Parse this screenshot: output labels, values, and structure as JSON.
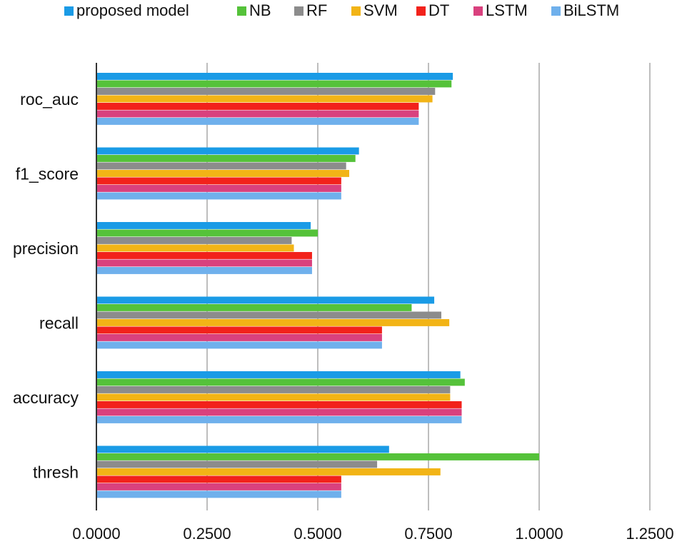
{
  "chart_data": {
    "type": "bar",
    "orientation": "horizontal",
    "title": "",
    "xlabel": "",
    "ylabel": "",
    "xlim": [
      0,
      1.25
    ],
    "xticks": [
      "0.0000",
      "0.2500",
      "0.5000",
      "0.7500",
      "1.0000",
      "1.2500"
    ],
    "xtick_values": [
      0,
      0.25,
      0.5,
      0.75,
      1.0,
      1.25
    ],
    "grid": true,
    "legend_position": "top",
    "categories": [
      "roc_auc",
      "f1_score",
      "precision",
      "recall",
      "accuracy",
      "thresh"
    ],
    "series": [
      {
        "name": "proposed model",
        "color": "#1a9be6",
        "values": [
          0.805,
          0.593,
          0.484,
          0.763,
          0.822,
          0.661
        ]
      },
      {
        "name": "NB",
        "color": "#55c23a",
        "values": [
          0.802,
          0.585,
          0.5,
          0.712,
          0.832,
          1.0
        ]
      },
      {
        "name": "RF",
        "color": "#8c8c8c",
        "values": [
          0.765,
          0.564,
          0.441,
          0.779,
          0.799,
          0.634
        ]
      },
      {
        "name": "SVM",
        "color": "#f2b416",
        "values": [
          0.759,
          0.571,
          0.446,
          0.797,
          0.799,
          0.777
        ]
      },
      {
        "name": "DT",
        "color": "#f2221b",
        "values": [
          0.728,
          0.553,
          0.487,
          0.645,
          0.825,
          0.553
        ]
      },
      {
        "name": "LSTM",
        "color": "#d9417e",
        "values": [
          0.728,
          0.553,
          0.487,
          0.645,
          0.825,
          0.553
        ]
      },
      {
        "name": "BiLSTM",
        "color": "#6fb0ec",
        "values": [
          0.728,
          0.553,
          0.487,
          0.645,
          0.825,
          0.553
        ]
      }
    ]
  }
}
